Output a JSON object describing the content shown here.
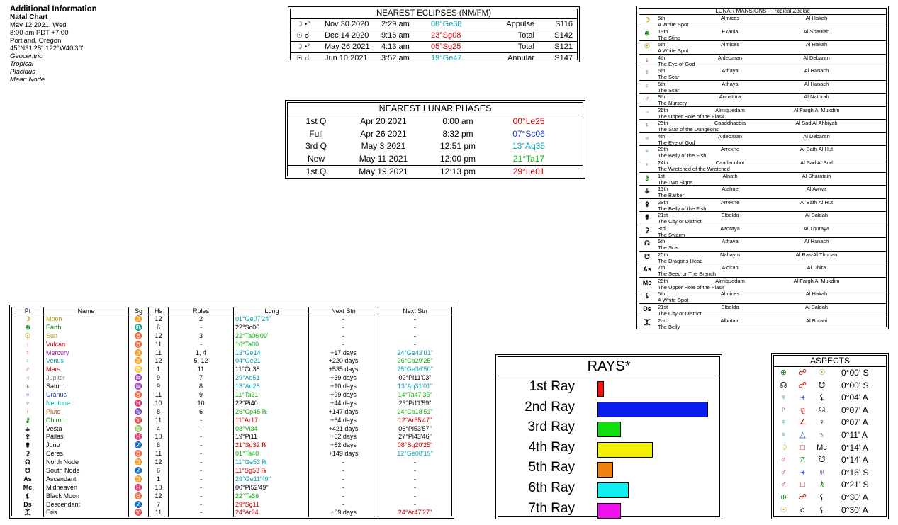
{
  "info": {
    "title": "Additional Information",
    "subtitle": "Natal Chart",
    "lines": [
      "May 12 2021, Wed",
      "8:00 am  PDT +7:00",
      "Portland, Oregon",
      "45°N31'25\"  122°W40'30\""
    ],
    "italic": [
      "Geocentric",
      "Tropical",
      "Placidus",
      "Mean Node"
    ]
  },
  "eclipses": {
    "title": "NEAREST ECLIPSES (NM/FM)",
    "rows": [
      {
        "sym": "☽ •°",
        "date": "Nov 30 2020",
        "time": "2:29 am",
        "pos": "08°Ge38",
        "color": "#0aa0b0",
        "type": "Appulse",
        "saros": "S116"
      },
      {
        "sym": "☉ ☌",
        "date": "Dec 14 2020",
        "time": "9:16 am",
        "pos": "23°Sg08",
        "color": "#d00000",
        "type": "Total",
        "saros": "S142"
      },
      {
        "sym": "☽ •°",
        "date": "May 26 2021",
        "time": "4:13 am",
        "pos": "05°Sg25",
        "color": "#d00000",
        "type": "Total",
        "saros": "S121"
      },
      {
        "sym": "☉ ☌",
        "date": "Jun 10 2021",
        "time": "3:52 am",
        "pos": "19°Ge47",
        "color": "#0aa0b0",
        "type": "Annular",
        "saros": "S147"
      }
    ]
  },
  "lunar": {
    "title": "NEAREST LUNAR PHASES",
    "rows": [
      {
        "phase": "1st Q",
        "date": "Apr 20 2021",
        "time": "0:00 am",
        "pos": "00°Le25",
        "color": "#d00000"
      },
      {
        "phase": "Full",
        "date": "Apr 26 2021",
        "time": "8:32 pm",
        "pos": "07°Sc06",
        "color": "#1a3cc8"
      },
      {
        "phase": "3rd Q",
        "date": "May 3 2021",
        "time": "12:51 pm",
        "pos": "13°Aq35",
        "color": "#0aa0b0"
      },
      {
        "phase": "New",
        "date": "May 11 2021",
        "time": "12:00 pm",
        "pos": "21°Ta17",
        "color": "#10b010"
      },
      {
        "phase": "1st Q",
        "date": "May 19 2021",
        "time": "12:13 pm",
        "pos": "29°Le01",
        "color": "#d00000"
      }
    ]
  },
  "mansions": {
    "title": "LUNAR MANSIONS - Tropical Zodiac",
    "rows": [
      {
        "icon": "☽",
        "ic": "#b8a000",
        "num": "5th",
        "star": "Almices",
        "name": "Al Hakah",
        "desc": "A White Spot"
      },
      {
        "icon": "⊕",
        "ic": "#108010",
        "num": "19th",
        "star": "Exaula",
        "name": "Al Shaulah",
        "desc": "The Sting"
      },
      {
        "icon": "☉",
        "ic": "#b8a000",
        "num": "5th",
        "star": "Almices",
        "name": "Al Hakah",
        "desc": "A White Spot"
      },
      {
        "icon": "↓",
        "ic": "#d00000",
        "num": "4th",
        "star": "Aldebaran",
        "name": "Al Debaran",
        "desc": "The Eye of God"
      },
      {
        "icon": "☿",
        "ic": "#a020a0",
        "num": "6th",
        "star": "Athaya",
        "name": "Al Hanach",
        "desc": "The Scar"
      },
      {
        "icon": "♀",
        "ic": "#10a0a0",
        "num": "6th",
        "star": "Athaya",
        "name": "Al Hanach",
        "desc": "The Scar"
      },
      {
        "icon": "♂",
        "ic": "#d00000",
        "num": "8th",
        "star": "Annathra",
        "name": "Al Nathrah",
        "desc": "The Nursery"
      },
      {
        "icon": "♃",
        "ic": "#808080",
        "num": "26th",
        "star": "Almiquedam",
        "name": "Al Fargh Al Mukdim",
        "desc": "The Upper Hole of the Flask"
      },
      {
        "icon": "♄",
        "ic": "#000000",
        "num": "25th",
        "star": "Caaddhacbia",
        "name": "Al Sad Al Ahbiyah",
        "desc": "The Star of the Dungeons"
      },
      {
        "icon": "♅",
        "ic": "#1a3cc8",
        "num": "4th",
        "star": "Aldebaran",
        "name": "Al Debaran",
        "desc": "The Eye of God"
      },
      {
        "icon": "♆",
        "ic": "#10a0a0",
        "num": "28th",
        "star": "Arrexhe",
        "name": "Al Bath Al Hut",
        "desc": "The Belly of the Fish"
      },
      {
        "icon": "♇",
        "ic": "#a05000",
        "num": "24th",
        "star": "Caadacohot",
        "name": "Al Sad Al Sud",
        "desc": "The Wretched of the Wretched"
      },
      {
        "icon": "⚷",
        "ic": "#108010",
        "num": "1st",
        "star": "Alnath",
        "name": "Al Sharatain",
        "desc": "The Two Signs"
      },
      {
        "icon": "⚶",
        "ic": "#000000",
        "num": "13th",
        "star": "Alahue",
        "name": "Al Awwa",
        "desc": "The Barker"
      },
      {
        "icon": "⚴",
        "ic": "#000000",
        "num": "28th",
        "star": "Arrexhe",
        "name": "Al Bath Al Hut",
        "desc": "The Belly of the Fish"
      },
      {
        "icon": "⚵",
        "ic": "#000000",
        "num": "21st",
        "star": "Elbelda",
        "name": "Al Baldah",
        "desc": "The City or District"
      },
      {
        "icon": "⚳",
        "ic": "#000000",
        "num": "3rd",
        "star": "Azoraya",
        "name": "Al Thuraya",
        "desc": "The Swarm"
      },
      {
        "icon": "☊",
        "ic": "#000000",
        "num": "6th",
        "star": "Athaya",
        "name": "Al Hanach",
        "desc": "The Scar"
      },
      {
        "icon": "☋",
        "ic": "#000000",
        "num": "20th",
        "star": "Nahaym",
        "name": "Al Ras-Al Thuban",
        "desc": "The Dragons Head"
      },
      {
        "icon": "As",
        "ic": "#000000",
        "num": "7th",
        "star": "Aldirah",
        "name": "Al Dhira",
        "desc": "The Seed or The Branch"
      },
      {
        "icon": "Mc",
        "ic": "#000000",
        "num": "26th",
        "star": "Almiquedam",
        "name": "Al Fargh Al Mukdim",
        "desc": "The Upper Hole of the Flask"
      },
      {
        "icon": "⚸",
        "ic": "#000000",
        "num": "5th",
        "star": "Almices",
        "name": "Al Hakah",
        "desc": "A White Spot"
      },
      {
        "icon": "Ds",
        "ic": "#000000",
        "num": "21st",
        "star": "Elbelda",
        "name": "Al Baldah",
        "desc": "The City or District"
      },
      {
        "icon": "⯰",
        "ic": "#000000",
        "num": "2nd",
        "star": "Albotain",
        "name": "Al Butani",
        "desc": "The Belly"
      }
    ]
  },
  "planets": {
    "headers": [
      "Pt",
      "Name",
      "Sg",
      "Hs",
      "Rules",
      "Long",
      "Next Stn",
      "Next Stn"
    ],
    "rows": [
      {
        "icon": "☽",
        "name": "Moon",
        "color": "#b8a000",
        "sg": "♊",
        "sgc": "#1a3cc8",
        "hs": "12",
        "rules": "2",
        "long": "01°Ge07'24\"",
        "lc": "#0aa0b0",
        "stn1": "-",
        "s1c": "#000",
        "stn2": "-",
        "s2c": "#000"
      },
      {
        "icon": "⊕",
        "name": "Earth",
        "color": "#108010",
        "sg": "♏",
        "sgc": "#000000",
        "hs": "6",
        "rules": "-",
        "long": "22°Sc06",
        "lc": "#000000",
        "stn1": "-",
        "s1c": "#000",
        "stn2": "-",
        "s2c": "#000"
      },
      {
        "icon": "☉",
        "name": "Sun",
        "color": "#b8a000",
        "sg": "♉",
        "sgc": "#108010",
        "hs": "12",
        "rules": "3",
        "long": "22°Ta06'09\"",
        "lc": "#10b010",
        "stn1": "-",
        "s1c": "#000",
        "stn2": "-",
        "s2c": "#000"
      },
      {
        "icon": "↓",
        "name": "Vulcan",
        "color": "#d00000",
        "sg": "♉",
        "sgc": "#108010",
        "hs": "11",
        "rules": "-",
        "long": "16°Ta00",
        "lc": "#10b010",
        "stn1": "-",
        "s1c": "#000",
        "stn2": "-",
        "s2c": "#000"
      },
      {
        "icon": "☿",
        "name": "Mercury",
        "color": "#a020a0",
        "sg": "♊",
        "sgc": "#1a3cc8",
        "hs": "11",
        "rules": "1, 4",
        "long": "13°Ge14",
        "lc": "#0aa0b0",
        "stn1": "+17 days",
        "s1c": "#000",
        "stn2": "24°Ge43'01\"",
        "s2c": "#0aa0b0"
      },
      {
        "icon": "♀",
        "name": "Venus",
        "color": "#10a0a0",
        "sg": "♊",
        "sgc": "#1a3cc8",
        "hs": "12",
        "rules": "5, 12",
        "long": "04°Ge21",
        "lc": "#0aa0b0",
        "stn1": "+220 days",
        "s1c": "#000",
        "stn2": "26°Cp29'25\"",
        "s2c": "#10b010"
      },
      {
        "icon": "♂",
        "name": "Mars",
        "color": "#d00000",
        "sg": "♋",
        "sgc": "#000000",
        "hs": "1",
        "rules": "11",
        "long": "11°Cn38",
        "lc": "#000000",
        "stn1": "+535 days",
        "s1c": "#000",
        "stn2": "25°Ge36'50\"",
        "s2c": "#0aa0b0"
      },
      {
        "icon": "♃",
        "name": "Jupiter",
        "color": "#808080",
        "sg": "♒",
        "sgc": "#0aa0b0",
        "hs": "9",
        "rules": "7",
        "long": "29°Aq51",
        "lc": "#0aa0b0",
        "stn1": "+39 days",
        "s1c": "#000",
        "stn2": "02°Pi11'03\"",
        "s2c": "#000"
      },
      {
        "icon": "♄",
        "name": "Saturn",
        "color": "#000000",
        "sg": "♒",
        "sgc": "#0aa0b0",
        "hs": "9",
        "rules": "8",
        "long": "13°Aq25",
        "lc": "#0aa0b0",
        "stn1": "+10 days",
        "s1c": "#000",
        "stn2": "13°Aq31'01\"",
        "s2c": "#0aa0b0"
      },
      {
        "icon": "♅",
        "name": "Uranus",
        "color": "#1a3cc8",
        "sg": "♉",
        "sgc": "#108010",
        "hs": "11",
        "rules": "9",
        "long": "11°Ta21",
        "lc": "#10b010",
        "stn1": "+99 days",
        "s1c": "#000",
        "stn2": "14°Ta47'35\"",
        "s2c": "#10b010"
      },
      {
        "icon": "♆",
        "name": "Neptune",
        "color": "#10a0a0",
        "sg": "♓",
        "sgc": "#1a3cc8",
        "hs": "10",
        "rules": "10",
        "long": "22°Pi40",
        "lc": "#000000",
        "stn1": "+44 days",
        "s1c": "#000",
        "stn2": "23°Pi11'59\"",
        "s2c": "#000"
      },
      {
        "icon": "♇",
        "name": "Pluto",
        "color": "#a05000",
        "sg": "♑",
        "sgc": "#108010",
        "hs": "8",
        "rules": "6",
        "long": "26°Cp45 ℞",
        "lc": "#10b010",
        "stn1": "+147 days",
        "s1c": "#000",
        "stn2": "24°Cp18'51\"",
        "s2c": "#10b010"
      },
      {
        "icon": "⚷",
        "name": "Chiron",
        "color": "#108010",
        "sg": "♈",
        "sgc": "#d00000",
        "hs": "11",
        "rules": "-",
        "long": "11°Ar17",
        "lc": "#d00000",
        "stn1": "+64 days",
        "s1c": "#000",
        "stn2": "12°Ar55'47\"",
        "s2c": "#d00000"
      },
      {
        "icon": "⚶",
        "name": "Vesta",
        "color": "#000000",
        "sg": "♍",
        "sgc": "#108010",
        "hs": "4",
        "rules": "-",
        "long": "08°Vi34",
        "lc": "#10b010",
        "stn1": "+421 days",
        "s1c": "#000",
        "stn2": "06°Pi53'57\"",
        "s2c": "#000"
      },
      {
        "icon": "⚴",
        "name": "Pallas",
        "color": "#000000",
        "sg": "♓",
        "sgc": "#1a3cc8",
        "hs": "10",
        "rules": "-",
        "long": "19°Pi11",
        "lc": "#000000",
        "stn1": "+62 days",
        "s1c": "#000",
        "stn2": "27°Pi43'46\"",
        "s2c": "#000"
      },
      {
        "icon": "⚵",
        "name": "Juno",
        "color": "#000000",
        "sg": "♐",
        "sgc": "#d00000",
        "hs": "6",
        "rules": "-",
        "long": "21°Sg32 ℞",
        "lc": "#d00000",
        "stn1": "+82 days",
        "s1c": "#000",
        "stn2": "08°Sg20'25\"",
        "s2c": "#d00000"
      },
      {
        "icon": "⚳",
        "name": "Ceres",
        "color": "#000000",
        "sg": "♉",
        "sgc": "#108010",
        "hs": "11",
        "rules": "-",
        "long": "01°Ta40",
        "lc": "#10b010",
        "stn1": "+149 days",
        "s1c": "#000",
        "stn2": "12°Ge08'19\"",
        "s2c": "#0aa0b0"
      },
      {
        "icon": "☊",
        "name": "North Node",
        "color": "#000000",
        "sg": "♊",
        "sgc": "#1a3cc8",
        "hs": "12",
        "rules": "-",
        "long": "11°Ge53 ℞",
        "lc": "#0aa0b0",
        "stn1": "-",
        "s1c": "#000",
        "stn2": "-",
        "s2c": "#000"
      },
      {
        "icon": "☋",
        "name": "South Node",
        "color": "#000000",
        "sg": "♐",
        "sgc": "#d00000",
        "hs": "6",
        "rules": "-",
        "long": "11°Sg53 ℞",
        "lc": "#d00000",
        "stn1": "-",
        "s1c": "#000",
        "stn2": "-",
        "s2c": "#000"
      },
      {
        "icon": "As",
        "name": "Ascendant",
        "color": "#000000",
        "sg": "♊",
        "sgc": "#1a3cc8",
        "hs": "1",
        "rules": "-",
        "long": "29°Ge11'49\"",
        "lc": "#0aa0b0",
        "stn1": "-",
        "s1c": "#000",
        "stn2": "-",
        "s2c": "#000"
      },
      {
        "icon": "Mc",
        "name": "Midheaven",
        "color": "#000000",
        "sg": "♓",
        "sgc": "#1a3cc8",
        "hs": "10",
        "rules": "-",
        "long": "00°Pi52'49\"",
        "lc": "#000000",
        "stn1": "-",
        "s1c": "#000",
        "stn2": "-",
        "s2c": "#000"
      },
      {
        "icon": "⚸",
        "name": "Black Moon",
        "color": "#000000",
        "sg": "♉",
        "sgc": "#108010",
        "hs": "12",
        "rules": "-",
        "long": "22°Ta36",
        "lc": "#10b010",
        "stn1": "-",
        "s1c": "#000",
        "stn2": "-",
        "s2c": "#000"
      },
      {
        "icon": "Ds",
        "name": "Descendant",
        "color": "#000000",
        "sg": "♐",
        "sgc": "#d00000",
        "hs": "7",
        "rules": "-",
        "long": "29°Sg11",
        "lc": "#d00000",
        "stn1": "-",
        "s1c": "#000",
        "stn2": "-",
        "s2c": "#000"
      },
      {
        "icon": "⯰",
        "name": "Eris",
        "color": "#000000",
        "sg": "♈",
        "sgc": "#d00000",
        "hs": "11",
        "rules": "-",
        "long": "24°Ar24",
        "lc": "#d00000",
        "stn1": "+69 days",
        "s1c": "#000",
        "stn2": "24°Ar47'27\"",
        "s2c": "#d00000"
      }
    ]
  },
  "rays": {
    "title": "RAYS*",
    "max": 100,
    "rows": [
      {
        "label": "1st Ray",
        "value": 6,
        "color": "#ff1010"
      },
      {
        "label": "2nd Ray",
        "value": 100,
        "color": "#0a1ef0"
      },
      {
        "label": "3rd Ray",
        "value": 21,
        "color": "#10e010"
      },
      {
        "label": "4th Ray",
        "value": 50,
        "color": "#f0f000"
      },
      {
        "label": "5th Ray",
        "value": 14,
        "color": "#f08010"
      },
      {
        "label": "6th Ray",
        "value": 28,
        "color": "#10f0f0"
      },
      {
        "label": "7th Ray",
        "value": 21,
        "color": "#f010f0"
      }
    ]
  },
  "aspects": {
    "title": "ASPECTS",
    "rows": [
      {
        "p1": "⊕",
        "c1": "#108010",
        "asp": "☍",
        "ca": "#d00000",
        "p2": "☉",
        "c2": "#b8a000",
        "orb": "0°00' S"
      },
      {
        "p1": "☊",
        "c1": "#000000",
        "asp": "☍",
        "ca": "#d00000",
        "p2": "☋",
        "c2": "#000000",
        "orb": "0°00' S"
      },
      {
        "p1": "♆",
        "c1": "#10a0a0",
        "asp": "⚹",
        "ca": "#1a3cc8",
        "p2": "⚸",
        "c2": "#000000",
        "orb": "0°04' A"
      },
      {
        "p1": "♇",
        "c1": "#a05000",
        "asp": "⚼",
        "ca": "#d00000",
        "p2": "☊",
        "c2": "#000000",
        "orb": "0°07' A"
      },
      {
        "p1": "♀",
        "c1": "#10a0a0",
        "asp": "∠",
        "ca": "#d00000",
        "p2": "♀",
        "c2": "#000000",
        "orb": "0°07' A"
      },
      {
        "p1": "♀",
        "c1": "#10a0a0",
        "asp": "△",
        "ca": "#1a3cc8",
        "p2": "♄",
        "c2": "#000000",
        "orb": "0°11' A"
      },
      {
        "p1": "☽",
        "c1": "#b8a000",
        "asp": "□",
        "ca": "#d00000",
        "p2": "Mc",
        "c2": "#000000",
        "orb": "0°14' A"
      },
      {
        "p1": "♂",
        "c1": "#d00000",
        "asp": "⚻",
        "ca": "#108010",
        "p2": "☋",
        "c2": "#000000",
        "orb": "0°14' A"
      },
      {
        "p1": "♂",
        "c1": "#d00000",
        "asp": "⚹",
        "ca": "#1a3cc8",
        "p2": "♅",
        "c2": "#1a3cc8",
        "orb": "0°16' S"
      },
      {
        "p1": "♂",
        "c1": "#d00000",
        "asp": "□",
        "ca": "#d00000",
        "p2": "⚷",
        "c2": "#108010",
        "orb": "0°21' S"
      },
      {
        "p1": "⊕",
        "c1": "#108010",
        "asp": "☍",
        "ca": "#d00000",
        "p2": "⚸",
        "c2": "#000000",
        "orb": "0°30' A"
      },
      {
        "p1": "☉",
        "c1": "#b8a000",
        "asp": "☌",
        "ca": "#000000",
        "p2": "⚸",
        "c2": "#000000",
        "orb": "0°30' A"
      }
    ]
  }
}
